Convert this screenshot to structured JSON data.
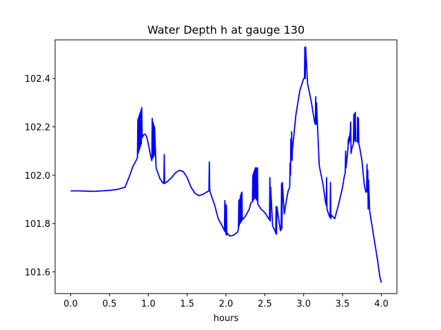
{
  "chart_data": {
    "type": "line",
    "title": "Water Depth h at gauge 130",
    "xlabel": "hours",
    "ylabel": "",
    "xlim": [
      -0.2,
      4.2
    ],
    "ylim": [
      101.51,
      102.56
    ],
    "xticks": [
      0.0,
      0.5,
      1.0,
      1.5,
      2.0,
      2.5,
      3.0,
      3.5,
      4.0
    ],
    "xtick_labels": [
      "0.0",
      "0.5",
      "1.0",
      "1.5",
      "2.0",
      "2.5",
      "3.0",
      "3.5",
      "4.0"
    ],
    "yticks": [
      101.6,
      101.8,
      102.0,
      102.2,
      102.4
    ],
    "ytick_labels": [
      "101.6",
      "101.8",
      "102.0",
      "102.2",
      "102.4"
    ],
    "grid": false,
    "legend": "none",
    "series": [
      {
        "color": "#0000ff",
        "x": [
          0.0,
          0.1,
          0.2,
          0.3,
          0.4,
          0.5,
          0.6,
          0.7,
          0.75,
          0.8,
          0.85,
          0.86,
          0.865,
          0.87,
          0.875,
          0.88,
          0.885,
          0.89,
          0.895,
          0.9,
          0.905,
          0.91,
          0.915,
          0.92,
          0.94,
          0.96,
          0.98,
          1.0,
          1.02,
          1.04,
          1.045,
          1.05,
          1.055,
          1.06,
          1.065,
          1.07,
          1.075,
          1.08,
          1.1,
          1.15,
          1.19,
          1.2,
          1.205,
          1.21,
          1.215,
          1.25,
          1.3,
          1.35,
          1.4,
          1.45,
          1.5,
          1.55,
          1.6,
          1.65,
          1.7,
          1.75,
          1.78,
          1.785,
          1.79,
          1.795,
          1.85,
          1.9,
          1.95,
          1.98,
          1.985,
          1.99,
          1.995,
          2.0,
          2.005,
          2.01,
          2.015,
          2.05,
          2.1,
          2.15,
          2.16,
          2.165,
          2.17,
          2.175,
          2.18,
          2.185,
          2.19,
          2.195,
          2.2,
          2.205,
          2.21,
          2.25,
          2.3,
          2.32,
          2.34,
          2.345,
          2.35,
          2.355,
          2.36,
          2.365,
          2.37,
          2.375,
          2.38,
          2.385,
          2.39,
          2.395,
          2.4,
          2.405,
          2.41,
          2.45,
          2.5,
          2.55,
          2.56,
          2.565,
          2.57,
          2.575,
          2.6,
          2.63,
          2.64,
          2.645,
          2.65,
          2.655,
          2.7,
          2.71,
          2.715,
          2.72,
          2.725,
          2.75,
          2.78,
          2.8,
          2.82,
          2.825,
          2.83,
          2.835,
          2.84,
          2.845,
          2.85,
          2.855,
          2.86,
          2.9,
          2.95,
          3.0,
          3.01,
          3.015,
          3.02,
          3.025,
          3.05,
          3.1,
          3.14,
          3.15,
          3.155,
          3.16,
          3.165,
          3.18,
          3.2,
          3.25,
          3.28,
          3.29,
          3.295,
          3.3,
          3.33,
          3.34,
          3.345,
          3.35,
          3.355,
          3.4,
          3.45,
          3.5,
          3.52,
          3.535,
          3.54,
          3.545,
          3.57,
          3.575,
          3.58,
          3.585,
          3.59,
          3.595,
          3.6,
          3.605,
          3.61,
          3.615,
          3.62,
          3.64,
          3.645,
          3.65,
          3.655,
          3.66,
          3.665,
          3.67,
          3.69,
          3.695,
          3.7,
          3.705,
          3.71,
          3.715,
          3.75,
          3.78,
          3.8,
          3.81,
          3.815,
          3.82,
          3.825,
          3.83,
          3.835,
          3.85,
          3.9,
          3.95,
          3.98,
          4.0
        ],
        "y": [
          101.935,
          101.935,
          101.934,
          101.933,
          101.935,
          101.937,
          101.941,
          101.95,
          101.99,
          102.035,
          102.065,
          102.075,
          102.23,
          102.09,
          102.24,
          102.1,
          102.25,
          102.11,
          102.26,
          102.12,
          102.27,
          102.13,
          102.28,
          102.155,
          102.168,
          102.17,
          102.158,
          102.13,
          102.095,
          102.065,
          102.06,
          102.235,
          102.07,
          102.22,
          102.075,
          102.21,
          102.08,
          102.2,
          102.03,
          101.985,
          101.967,
          101.966,
          102.085,
          101.966,
          101.967,
          101.975,
          101.99,
          102.01,
          102.02,
          102.015,
          101.99,
          101.95,
          101.925,
          101.915,
          101.92,
          101.93,
          101.935,
          102.055,
          101.945,
          101.93,
          101.88,
          101.82,
          101.79,
          101.77,
          101.895,
          101.765,
          101.88,
          101.755,
          101.875,
          101.752,
          101.76,
          101.748,
          101.752,
          101.765,
          101.78,
          101.895,
          101.79,
          101.9,
          101.8,
          101.915,
          101.805,
          101.925,
          101.81,
          101.93,
          101.815,
          101.83,
          101.86,
          101.885,
          101.89,
          102.0,
          101.895,
          102.01,
          101.9,
          102.02,
          101.905,
          102.03,
          101.905,
          102.03,
          101.9,
          102.03,
          101.895,
          102.03,
          101.88,
          101.86,
          101.845,
          101.82,
          101.815,
          101.99,
          101.81,
          101.95,
          101.79,
          101.77,
          101.76,
          101.87,
          101.755,
          101.87,
          101.77,
          101.775,
          101.965,
          101.78,
          101.97,
          101.84,
          101.9,
          101.935,
          101.95,
          102.05,
          102.0,
          102.15,
          102.07,
          102.18,
          102.06,
          102.11,
          102.12,
          102.25,
          102.35,
          102.4,
          102.4,
          102.53,
          102.4,
          102.53,
          102.38,
          102.3,
          102.22,
          102.21,
          102.325,
          102.21,
          102.3,
          102.19,
          102.04,
          101.96,
          101.89,
          101.875,
          101.99,
          101.86,
          101.83,
          101.825,
          101.97,
          101.82,
          101.835,
          101.82,
          101.88,
          101.95,
          101.99,
          102.01,
          102.1,
          102.03,
          102.11,
          102.15,
          102.13,
          102.16,
          102.14,
          102.17,
          102.18,
          102.22,
          102.09,
          102.1,
          102.11,
          102.13,
          102.25,
          102.14,
          102.255,
          102.15,
          102.26,
          102.14,
          102.14,
          102.24,
          102.135,
          102.235,
          102.13,
          102.125,
          102.06,
          101.96,
          101.93,
          101.93,
          102.045,
          101.935,
          102.02,
          101.86,
          101.98,
          101.85,
          101.75,
          101.65,
          101.58,
          101.555
        ]
      }
    ]
  }
}
